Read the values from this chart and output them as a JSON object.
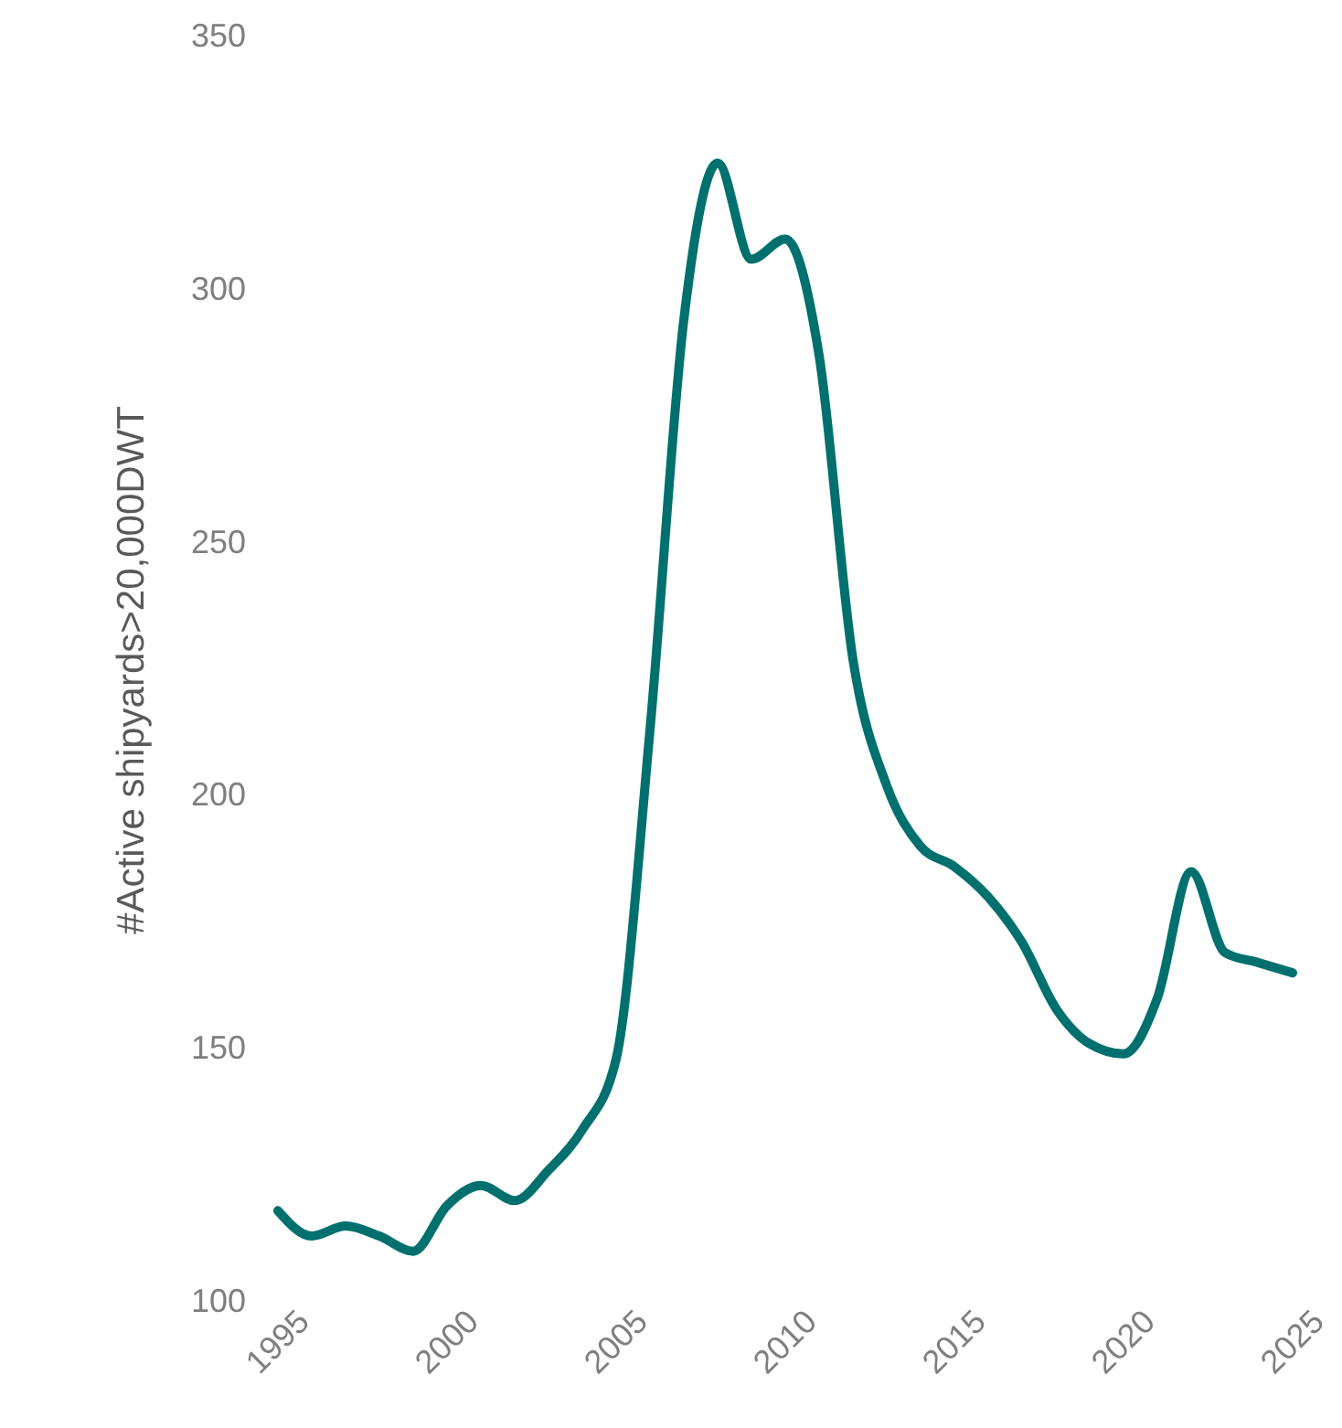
{
  "chart_data": {
    "type": "line",
    "ylabel": "#Active shipyards>20,000DWT",
    "x": [
      1995,
      1996,
      1997,
      1998,
      1999,
      2000,
      2001,
      2002,
      2003,
      2004,
      2005,
      2006,
      2007,
      2008,
      2009,
      2010,
      2011,
      2012,
      2013,
      2014,
      2015,
      2016,
      2017,
      2018,
      2019,
      2020,
      2021,
      2022,
      2023,
      2024,
      2025
    ],
    "series": [
      {
        "color": "#00706e",
        "values": [
          118,
          113,
          115,
          113,
          110,
          119,
          123,
          120,
          126,
          134,
          148,
          213,
          294,
          325,
          306,
          310,
          287,
          227,
          202,
          190,
          186,
          180,
          171,
          158,
          151,
          149,
          160,
          185,
          169,
          167,
          165
        ]
      }
    ],
    "xlim": [
      1995,
      2025
    ],
    "xticks": [
      1995,
      2000,
      2005,
      2010,
      2015,
      2020,
      2025
    ],
    "ylim": [
      100,
      350
    ],
    "yticks": [
      100,
      150,
      200,
      250,
      300,
      350
    ],
    "grid": false,
    "legend": false,
    "marker": "none",
    "line_style": "solid"
  }
}
